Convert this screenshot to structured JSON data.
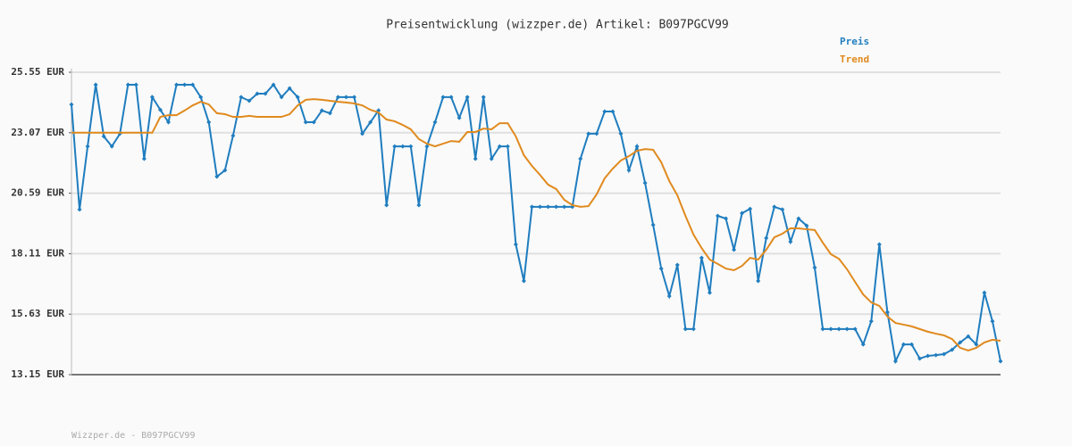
{
  "chart_data": {
    "type": "line",
    "title": "Preisentwicklung (wizzper.de) Artikel: B097PGCV99",
    "footer": "Wizzper.de - B097PGCV99",
    "ylim": [
      13.15,
      25.55
    ],
    "yticks": [
      {
        "value": 13.15,
        "label": "13.15 EUR"
      },
      {
        "value": 15.63,
        "label": "15.63 EUR"
      },
      {
        "value": 18.11,
        "label": "18.11 EUR"
      },
      {
        "value": 20.59,
        "label": "20.59 EUR"
      },
      {
        "value": 23.07,
        "label": "23.07 EUR"
      },
      {
        "value": 25.55,
        "label": "25.55 EUR"
      }
    ],
    "grid": true,
    "legend": "top-right",
    "series": [
      {
        "name": "Preis",
        "color": "#1f7dbf",
        "markers": true,
        "values": [
          24.23,
          19.92,
          22.51,
          25.04,
          22.92,
          22.51,
          23.03,
          25.04,
          25.04,
          22.0,
          24.53,
          24.01,
          23.5,
          25.04,
          25.04,
          25.04,
          24.53,
          23.5,
          21.27,
          21.53,
          22.95,
          24.53,
          24.38,
          24.67,
          24.67,
          25.04,
          24.53,
          24.89,
          24.53,
          23.5,
          23.5,
          23.98,
          23.87,
          24.53,
          24.53,
          24.53,
          23.03,
          23.5,
          23.98,
          20.1,
          22.51,
          22.51,
          22.51,
          20.1,
          22.51,
          23.5,
          24.53,
          24.53,
          23.68,
          24.53,
          22.0,
          24.53,
          22.0,
          22.51,
          22.51,
          18.49,
          16.99,
          20.03,
          20.03,
          20.03,
          20.03,
          20.03,
          20.03,
          22.0,
          23.03,
          23.03,
          23.94,
          23.94,
          23.03,
          21.53,
          22.51,
          21.01,
          19.29,
          17.5,
          16.37,
          17.65,
          15.02,
          15.02,
          17.94,
          16.51,
          19.66,
          19.55,
          18.27,
          19.77,
          19.95,
          16.99,
          18.75,
          20.03,
          19.92,
          18.6,
          19.55,
          19.26,
          17.54,
          15.02,
          15.02,
          15.02,
          15.02,
          15.02,
          14.39,
          15.34,
          18.49,
          15.71,
          13.7,
          14.39,
          14.39,
          13.81,
          13.92,
          13.95,
          13.99,
          14.17,
          14.47,
          14.72,
          14.39,
          16.51,
          15.34,
          13.7
        ]
      },
      {
        "name": "Trend",
        "color": "#e08a1e",
        "markers": false,
        "values": [
          23.07,
          23.07,
          23.07,
          23.07,
          23.07,
          23.07,
          23.07,
          23.07,
          23.07,
          23.07,
          23.07,
          23.72,
          23.79,
          23.79,
          23.98,
          24.19,
          24.34,
          24.23,
          23.87,
          23.83,
          23.72,
          23.72,
          23.76,
          23.72,
          23.72,
          23.72,
          23.72,
          23.83,
          24.19,
          24.42,
          24.45,
          24.42,
          24.38,
          24.34,
          24.31,
          24.27,
          24.19,
          24.01,
          23.9,
          23.61,
          23.54,
          23.39,
          23.21,
          22.81,
          22.62,
          22.51,
          22.62,
          22.73,
          22.7,
          23.1,
          23.1,
          23.24,
          23.21,
          23.46,
          23.46,
          22.92,
          22.15,
          21.71,
          21.34,
          20.94,
          20.76,
          20.32,
          20.1,
          20.03,
          20.06,
          20.54,
          21.2,
          21.6,
          21.93,
          22.11,
          22.33,
          22.4,
          22.37,
          21.86,
          21.09,
          20.5,
          19.66,
          18.89,
          18.34,
          17.87,
          17.69,
          17.5,
          17.43,
          17.61,
          17.94,
          17.87,
          18.27,
          18.78,
          18.93,
          19.15,
          19.15,
          19.11,
          19.08,
          18.56,
          18.09,
          17.9,
          17.47,
          16.95,
          16.44,
          16.11,
          15.97,
          15.53,
          15.27,
          15.2,
          15.13,
          15.02,
          14.91,
          14.83,
          14.76,
          14.61,
          14.25,
          14.14,
          14.25,
          14.47,
          14.58,
          14.54
        ]
      }
    ]
  }
}
